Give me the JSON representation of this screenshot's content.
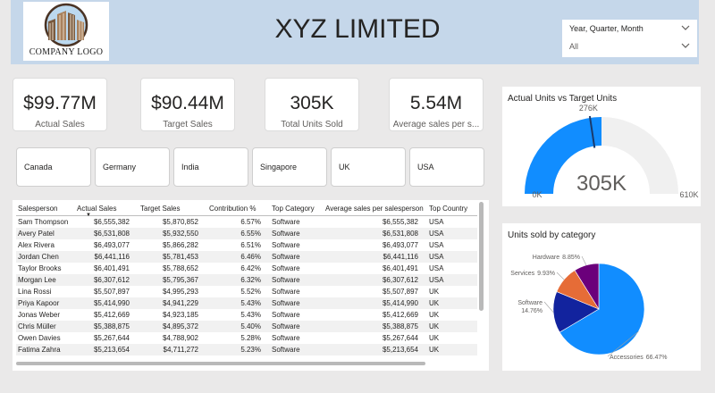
{
  "header": {
    "title": "XYZ LIMITED",
    "logo_text": "COMPANY LOGO"
  },
  "slicer": {
    "label": "Year, Quarter, Month",
    "value": "All"
  },
  "kpis": [
    {
      "value": "$99.77M",
      "label": "Actual Sales"
    },
    {
      "value": "$90.44M",
      "label": "Target Sales"
    },
    {
      "value": "305K",
      "label": "Total Units Sold"
    },
    {
      "value": "5.54M",
      "label": "Average sales per s..."
    }
  ],
  "countries": [
    "Canada",
    "Germany",
    "India",
    "Singapore",
    "UK",
    "USA"
  ],
  "table": {
    "columns": [
      "Salesperson",
      "Actual Sales",
      "Target Sales",
      "Contribution %",
      "Top Category",
      "Average sales per salesperson",
      "Top Country"
    ],
    "rows": [
      [
        "Sam Thompson",
        "$6,555,382",
        "$5,870,852",
        "6.57%",
        "Software",
        "$6,555,382",
        "USA"
      ],
      [
        "Avery Patel",
        "$6,531,808",
        "$5,932,550",
        "6.55%",
        "Software",
        "$6,531,808",
        "USA"
      ],
      [
        "Alex Rivera",
        "$6,493,077",
        "$5,866,282",
        "6.51%",
        "Software",
        "$6,493,077",
        "USA"
      ],
      [
        "Jordan Chen",
        "$6,441,116",
        "$5,781,453",
        "6.46%",
        "Software",
        "$6,441,116",
        "USA"
      ],
      [
        "Taylor Brooks",
        "$6,401,491",
        "$5,788,652",
        "6.42%",
        "Software",
        "$6,401,491",
        "USA"
      ],
      [
        "Morgan Lee",
        "$6,307,612",
        "$5,795,367",
        "6.32%",
        "Software",
        "$6,307,612",
        "USA"
      ],
      [
        "Lina Rossi",
        "$5,507,897",
        "$4,995,293",
        "5.52%",
        "Software",
        "$5,507,897",
        "UK"
      ],
      [
        "Priya Kapoor",
        "$5,414,990",
        "$4,941,229",
        "5.43%",
        "Software",
        "$5,414,990",
        "UK"
      ],
      [
        "Jonas Weber",
        "$5,412,669",
        "$4,923,185",
        "5.43%",
        "Software",
        "$5,412,669",
        "UK"
      ],
      [
        "Chris Müller",
        "$5,388,875",
        "$4,895,372",
        "5.40%",
        "Software",
        "$5,388,875",
        "UK"
      ],
      [
        "Owen Davies",
        "$5,267,644",
        "$4,788,902",
        "5.28%",
        "Software",
        "$5,267,644",
        "UK"
      ],
      [
        "Fatima Zahra",
        "$5,213,654",
        "$4,711,272",
        "5.23%",
        "Software",
        "$5,213,654",
        "UK"
      ]
    ]
  },
  "chart_data": [
    {
      "type": "gauge",
      "title": "Actual Units vs Target Units",
      "value": 305,
      "value_label": "305K",
      "target": 276,
      "target_label": "276K",
      "min": 0,
      "min_label": "0K",
      "max": 610,
      "max_label": "610K",
      "colors": {
        "fill": "#118dff",
        "track": "#f0f0f0",
        "target": "#1a3a6b"
      }
    },
    {
      "type": "pie",
      "title": "Units sold by category",
      "slices": [
        {
          "label": "Accessories",
          "value": 66.47,
          "value_label": "66.47%",
          "color": "#118dff"
        },
        {
          "label": "Software",
          "value": 14.76,
          "value_label": "14.76%",
          "color": "#12239e"
        },
        {
          "label": "Services",
          "value": 9.93,
          "value_label": "9.93%",
          "color": "#e66c37"
        },
        {
          "label": "Hardware",
          "value": 8.85,
          "value_label": "8.85%",
          "color": "#6b007b"
        }
      ]
    }
  ]
}
